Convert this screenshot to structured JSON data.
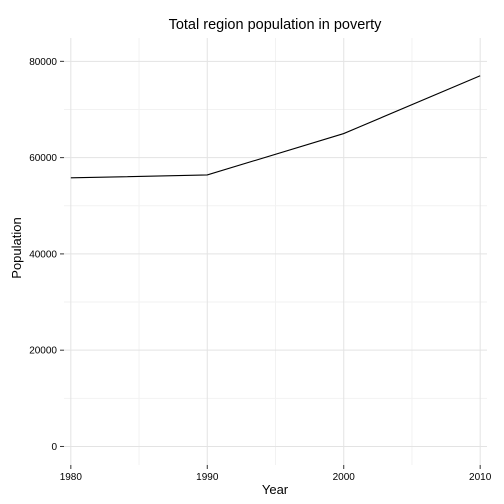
{
  "chart_data": {
    "type": "line",
    "title": "Total region population in poverty",
    "xlabel": "Year",
    "ylabel": "Population",
    "x": [
      1980,
      1990,
      2000,
      2010
    ],
    "series": [
      {
        "values": [
          55800,
          56400,
          65000,
          77000
        ]
      }
    ],
    "xticks": [
      1980,
      1990,
      2000,
      2010
    ],
    "yticks": [
      0,
      20000,
      40000,
      60000,
      80000
    ],
    "xlim": [
      1979.5,
      2010.5
    ],
    "ylim": [
      -3850,
      84850
    ],
    "grid": true,
    "legend": "none",
    "line_color": "#000000",
    "grid_color": "#e3e3e3"
  }
}
